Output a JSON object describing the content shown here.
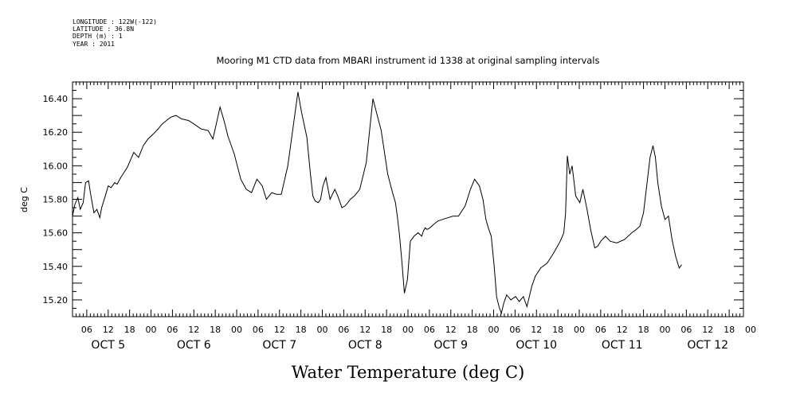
{
  "header": {
    "lines": [
      "LONGITUDE : 122W(-122)",
      "LATITUDE : 36.8N",
      "DEPTH (m) : 1",
      "YEAR : 2011"
    ]
  },
  "chart_data": {
    "type": "line",
    "title": "Mooring M1 CTD data from MBARI instrument id 1338 at original sampling intervals",
    "xlabel": "Water Temperature (deg C)",
    "ylabel": "deg C",
    "ylim": [
      15.1,
      16.5
    ],
    "yticks": [
      15.2,
      15.4,
      15.6,
      15.8,
      16.0,
      16.2,
      16.4
    ],
    "xlim": [
      "2011-10-05T02:00",
      "2011-10-12T22:00"
    ],
    "hour_ticks": [
      "06",
      "12",
      "18",
      "00",
      "06",
      "12",
      "18",
      "00",
      "06",
      "12",
      "18",
      "00",
      "06",
      "12",
      "18",
      "00",
      "06",
      "12",
      "18",
      "00",
      "06",
      "12",
      "18",
      "00",
      "06",
      "12",
      "18",
      "00",
      "06",
      "12",
      "18",
      "00"
    ],
    "day_labels": [
      "OCT  5",
      "OCT  6",
      "OCT  7",
      "OCT  8",
      "OCT  9",
      "OCT 10",
      "OCT 11",
      "OCT 12"
    ],
    "grid": false,
    "series": [
      {
        "x": [
          "2011-10-05T02:00",
          "2011-10-05T02:40",
          "2011-10-05T03:30",
          "2011-10-05T04:10",
          "2011-10-05T05:00",
          "2011-10-05T05:40",
          "2011-10-05T06:30",
          "2011-10-05T07:00",
          "2011-10-05T08:00",
          "2011-10-05T08:50",
          "2011-10-05T09:40",
          "2011-10-05T10:10",
          "2011-10-05T11:10",
          "2011-10-05T12:00",
          "2011-10-05T12:50",
          "2011-10-05T13:50",
          "2011-10-05T14:30",
          "2011-10-05T15:30",
          "2011-10-05T17:20",
          "2011-10-05T19:10",
          "2011-10-05T20:30",
          "2011-10-05T21:50",
          "2011-10-05T23:10",
          "2011-10-06T00:40",
          "2011-10-06T02:00",
          "2011-10-06T03:10",
          "2011-10-06T04:20",
          "2011-10-06T05:30",
          "2011-10-06T07:00",
          "2011-10-06T08:30",
          "2011-10-06T10:30",
          "2011-10-06T12:00",
          "2011-10-06T14:00",
          "2011-10-06T16:00",
          "2011-10-06T17:20",
          "2011-10-06T18:30",
          "2011-10-06T19:20",
          "2011-10-06T20:10",
          "2011-10-06T20:50",
          "2011-10-06T21:30",
          "2011-10-06T23:20",
          "2011-10-07T01:10",
          "2011-10-07T02:40",
          "2011-10-07T04:10",
          "2011-10-07T05:40",
          "2011-10-07T07:10",
          "2011-10-07T08:20",
          "2011-10-07T09:50",
          "2011-10-07T11:10",
          "2011-10-07T12:30",
          "2011-10-07T14:20",
          "2011-10-07T16:00",
          "2011-10-07T17:10",
          "2011-10-07T18:10",
          "2011-10-07T19:40",
          "2011-10-07T20:40",
          "2011-10-07T21:20",
          "2011-10-07T22:00",
          "2011-10-07T22:50",
          "2011-10-07T23:30",
          "2011-10-08T00:10",
          "2011-10-08T01:00",
          "2011-10-08T02:10",
          "2011-10-08T03:30",
          "2011-10-08T04:20",
          "2011-10-08T05:30",
          "2011-10-08T06:20",
          "2011-10-08T07:10",
          "2011-10-08T07:50",
          "2011-10-08T09:00",
          "2011-10-08T10:30",
          "2011-10-08T12:20",
          "2011-10-08T14:10",
          "2011-10-08T16:30",
          "2011-10-08T18:20",
          "2011-10-08T19:40",
          "2011-10-08T20:30",
          "2011-10-08T21:00",
          "2011-10-08T21:40",
          "2011-10-08T22:20",
          "2011-10-08T23:00",
          "2011-10-08T23:50",
          "2011-10-09T00:40",
          "2011-10-09T01:40",
          "2011-10-09T02:50",
          "2011-10-09T03:50",
          "2011-10-09T04:20",
          "2011-10-09T04:50",
          "2011-10-09T05:20",
          "2011-10-09T06:10",
          "2011-10-09T07:10",
          "2011-10-09T08:20",
          "2011-10-09T09:40",
          "2011-10-09T11:10",
          "2011-10-09T12:40",
          "2011-10-09T14:10",
          "2011-10-09T16:00",
          "2011-10-09T17:30",
          "2011-10-09T18:40",
          "2011-10-09T20:00",
          "2011-10-09T21:00",
          "2011-10-09T21:50",
          "2011-10-09T22:30",
          "2011-10-09T23:20",
          "2011-10-10T00:10",
          "2011-10-10T00:50",
          "2011-10-10T01:30",
          "2011-10-10T02:10",
          "2011-10-10T02:50",
          "2011-10-10T03:40",
          "2011-10-10T04:50",
          "2011-10-10T06:10",
          "2011-10-10T07:10",
          "2011-10-10T08:20",
          "2011-10-10T09:20",
          "2011-10-10T10:40",
          "2011-10-10T11:40",
          "2011-10-10T13:10",
          "2011-10-10T15:00",
          "2011-10-10T16:50",
          "2011-10-10T18:40",
          "2011-10-10T19:40",
          "2011-10-10T20:10",
          "2011-10-10T20:40",
          "2011-10-10T21:20",
          "2011-10-10T22:00",
          "2011-10-10T23:00",
          "2011-10-11T00:10",
          "2011-10-11T01:00",
          "2011-10-11T02:10",
          "2011-10-11T03:10",
          "2011-10-11T04:20",
          "2011-10-11T05:10",
          "2011-10-11T06:00",
          "2011-10-11T07:20",
          "2011-10-11T08:40",
          "2011-10-11T10:30",
          "2011-10-11T12:40",
          "2011-10-11T14:40",
          "2011-10-11T16:00",
          "2011-10-11T17:00",
          "2011-10-11T18:00",
          "2011-10-11T19:00",
          "2011-10-11T19:50",
          "2011-10-11T20:40",
          "2011-10-11T21:20",
          "2011-10-11T22:00",
          "2011-10-11T23:00",
          "2011-10-12T00:00",
          "2011-10-12T01:00",
          "2011-10-12T02:00",
          "2011-10-12T03:00",
          "2011-10-12T04:00",
          "2011-10-12T04:40"
        ],
        "y": [
          15.7,
          15.77,
          15.81,
          15.74,
          15.78,
          15.9,
          15.91,
          15.84,
          15.72,
          15.74,
          15.69,
          15.75,
          15.82,
          15.88,
          15.87,
          15.9,
          15.89,
          15.93,
          15.99,
          16.08,
          16.05,
          16.12,
          16.16,
          16.19,
          16.22,
          16.25,
          16.27,
          16.29,
          16.3,
          16.28,
          16.27,
          16.25,
          16.22,
          16.21,
          16.16,
          16.27,
          16.35,
          16.29,
          16.24,
          16.18,
          16.07,
          15.92,
          15.86,
          15.84,
          15.92,
          15.88,
          15.8,
          15.84,
          15.83,
          15.83,
          16.0,
          16.26,
          16.44,
          16.32,
          16.17,
          15.95,
          15.82,
          15.79,
          15.78,
          15.8,
          15.88,
          15.93,
          15.8,
          15.86,
          15.82,
          15.75,
          15.76,
          15.78,
          15.8,
          15.82,
          15.86,
          16.02,
          16.4,
          16.21,
          15.95,
          15.84,
          15.78,
          15.7,
          15.58,
          15.42,
          15.24,
          15.32,
          15.55,
          15.58,
          15.6,
          15.58,
          15.61,
          15.63,
          15.62,
          15.63,
          15.65,
          15.67,
          15.68,
          15.69,
          15.7,
          15.7,
          15.76,
          15.86,
          15.92,
          15.88,
          15.8,
          15.68,
          15.63,
          15.58,
          15.4,
          15.22,
          15.16,
          15.12,
          15.18,
          15.23,
          15.2,
          15.22,
          15.19,
          15.22,
          15.16,
          15.28,
          15.34,
          15.39,
          15.42,
          15.48,
          15.55,
          15.6,
          15.72,
          16.06,
          15.95,
          16.0,
          15.82,
          15.78,
          15.86,
          15.74,
          15.62,
          15.51,
          15.52,
          15.55,
          15.58,
          15.55,
          15.54,
          15.56,
          15.6,
          15.62,
          15.64,
          15.72,
          15.9,
          16.05,
          16.12,
          16.05,
          15.9,
          15.76,
          15.68,
          15.7,
          15.56,
          15.46,
          15.39,
          15.41
        ]
      }
    ]
  }
}
